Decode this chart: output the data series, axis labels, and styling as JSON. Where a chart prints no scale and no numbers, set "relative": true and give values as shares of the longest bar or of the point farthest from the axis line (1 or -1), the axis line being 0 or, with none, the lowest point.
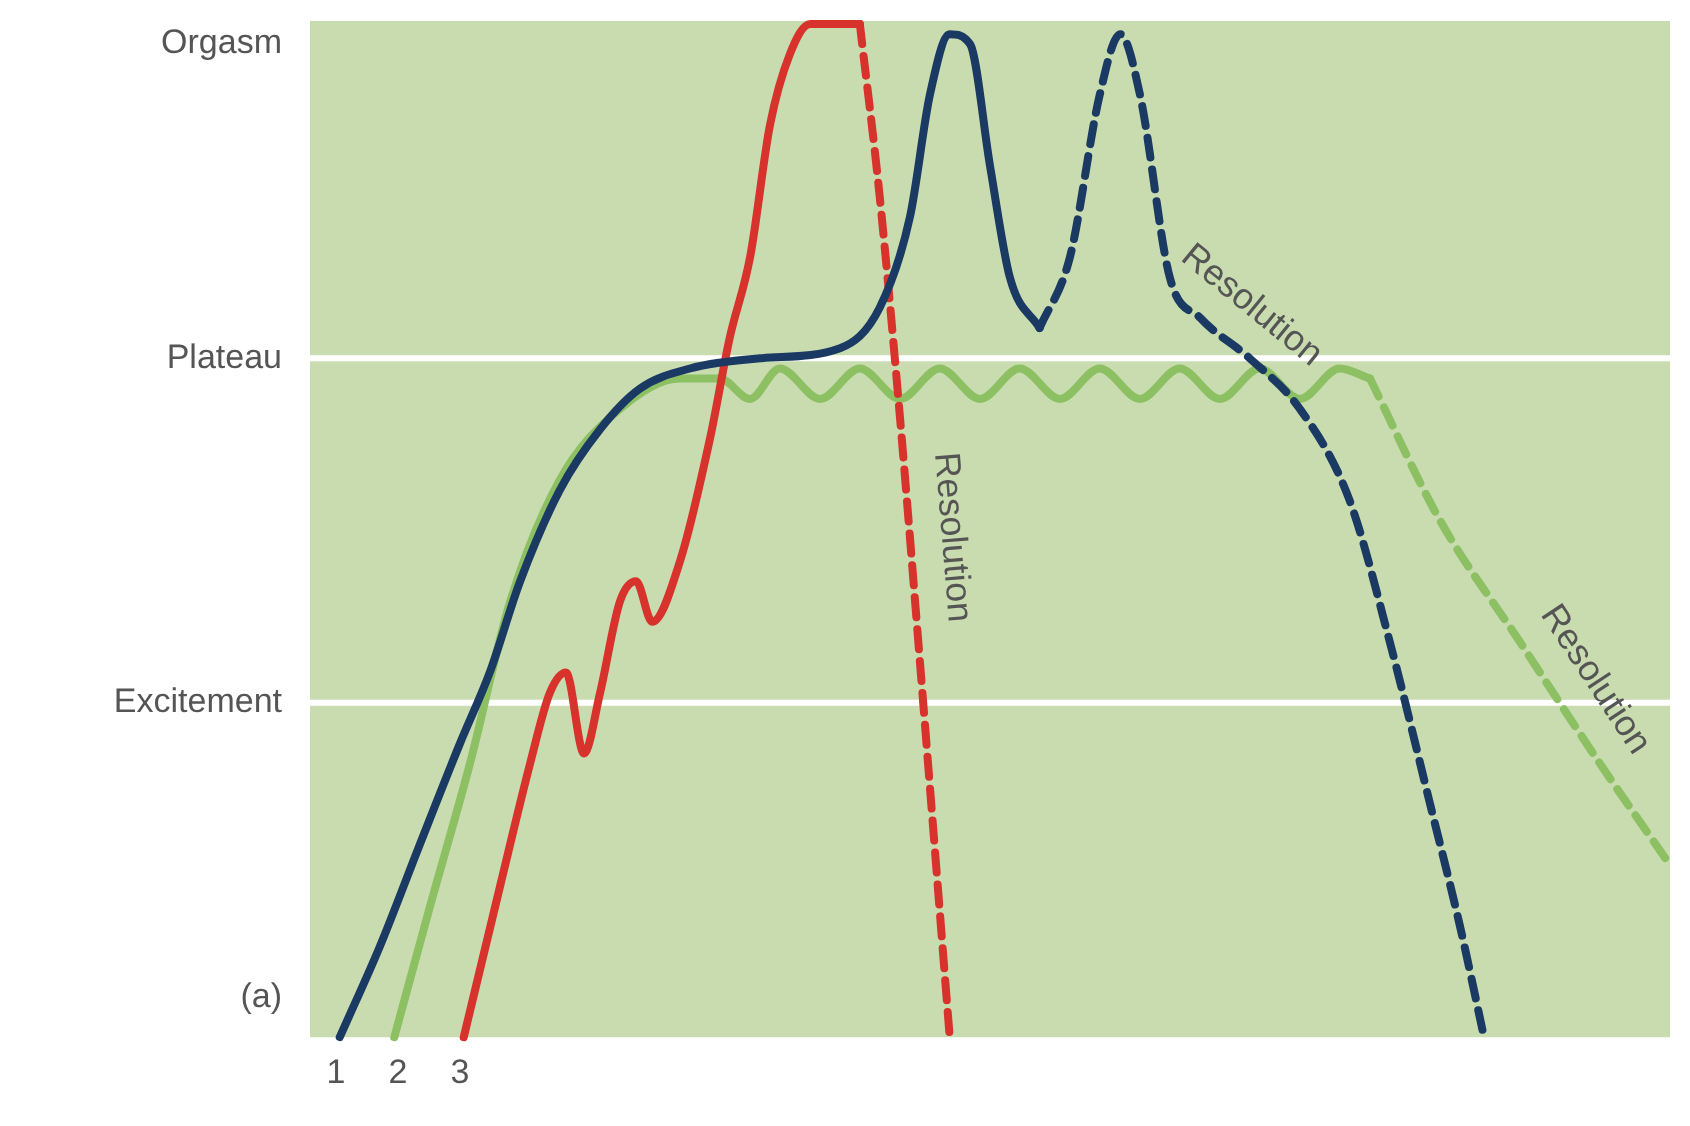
{
  "chart_data": {
    "type": "line",
    "relative": true,
    "legend": false,
    "xlim": [
      0.58,
      22.52
    ],
    "xticks": [
      1,
      2,
      3
    ],
    "ref_lines": [
      {
        "axis": "y",
        "value": 0.33,
        "label": "Excitement",
        "color": "#ffffff"
      },
      {
        "axis": "y",
        "value": 0.67,
        "label": "Plateau",
        "color": "#ffffff"
      },
      {
        "axis": "y",
        "value": 1,
        "label": "Orgasm",
        "color": "#c9dcb0"
      }
    ],
    "annotations": [
      "(a)"
    ],
    "series": [
      {
        "color": "#1a3a63",
        "line_style": "solid",
        "x": [
          1.06,
          1.71,
          2.35,
          3.0,
          3.48,
          3.97,
          4.61,
          5.26,
          5.9,
          6.71,
          7.84,
          9.13,
          9.77,
          10.26,
          10.58,
          10.9,
          11.23,
          11.55,
          11.87,
          12.35
        ],
        "values": [
          0,
          0.09,
          0.19,
          0.29,
          0.36,
          0.45,
          0.54,
          0.6,
          0.64,
          0.66,
          0.67,
          0.68,
          0.72,
          0.81,
          0.93,
          0.99,
          0.98,
          0.86,
          0.75,
          0.7
        ]
      },
      {
        "name": "Resolution",
        "color": "#1a3a63",
        "line_style": "dashed",
        "x": [
          12.35,
          12.84,
          13.32,
          13.65,
          13.97,
          14.45,
          14.94,
          15.74,
          16.55,
          17.35,
          18.0,
          18.65,
          19.13,
          19.52
        ],
        "values": [
          0.7,
          0.77,
          0.93,
          0.99,
          0.93,
          0.75,
          0.71,
          0.67,
          0.62,
          0.53,
          0.39,
          0.23,
          0.11,
          0
        ]
      },
      {
        "color": "#d8322c",
        "line_style": "solid",
        "x": [
          3.06,
          3.65,
          4.13,
          4.45,
          4.71,
          5.0,
          5.26,
          5.58,
          5.84,
          6.1,
          6.55,
          7.03,
          7.35,
          7.68,
          8.0,
          8.32,
          8.65,
          9.13,
          9.45
        ],
        "values": [
          0,
          0.15,
          0.27,
          0.34,
          0.36,
          0.28,
          0.34,
          0.43,
          0.45,
          0.41,
          0.47,
          0.59,
          0.69,
          0.77,
          0.9,
          0.97,
          1,
          1,
          1
        ]
      },
      {
        "name": "Resolution",
        "color": "#d8322c",
        "line_style": "dashed",
        "x": [
          9.45,
          9.77,
          10.1,
          10.42,
          10.9
        ],
        "values": [
          1,
          0.83,
          0.61,
          0.37,
          0
        ]
      },
      {
        "color": "#8cc063",
        "line_style": "solid",
        "x": [
          1.94,
          2.52,
          3.16,
          3.81,
          4.61,
          5.58,
          6.55,
          7.19,
          7.68,
          8.16,
          8.81,
          9.45,
          10.1,
          10.74,
          11.39,
          12.03,
          12.68,
          13.32,
          13.97,
          14.61,
          15.26,
          15.9,
          16.55,
          17.19,
          17.68
        ],
        "values": [
          0,
          0.13,
          0.27,
          0.43,
          0.55,
          0.62,
          0.65,
          0.65,
          0.63,
          0.66,
          0.63,
          0.66,
          0.63,
          0.66,
          0.63,
          0.66,
          0.63,
          0.66,
          0.63,
          0.66,
          0.63,
          0.66,
          0.63,
          0.66,
          0.65
        ]
      },
      {
        "name": "Resolution",
        "color": "#8cc063",
        "line_style": "dashed",
        "x": [
          17.68,
          18.81,
          20.1,
          21.39,
          22.52
        ],
        "values": [
          0.65,
          0.51,
          0.39,
          0.27,
          0.17
        ]
      }
    ]
  }
}
